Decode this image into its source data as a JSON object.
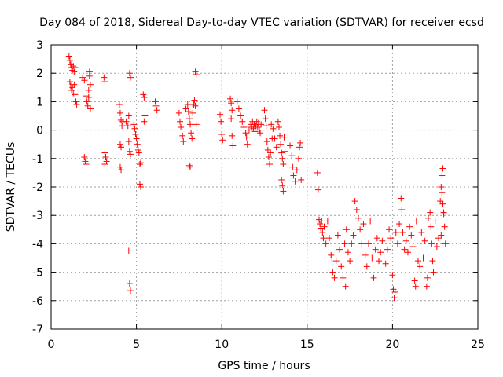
{
  "chart_data": {
    "type": "scatter",
    "title": "Day 084 of 2018, Sidereal Day-to-day VTEC variation (SDTVAR) for receiver ecsd",
    "xlabel": "GPS time / hours",
    "ylabel": "SDTVAR / TECUs",
    "xlim": [
      0,
      25
    ],
    "ylim": [
      -7,
      3
    ],
    "xticks": [
      "0",
      "5",
      "10",
      "15",
      "20",
      "25"
    ],
    "yticks": [
      "3",
      "2",
      "1",
      "0",
      "-1",
      "-2",
      "-3",
      "-4",
      "-5",
      "-6",
      "-7"
    ],
    "grid": true,
    "marker": "+",
    "series_color": "#ff0000",
    "series": [
      {
        "name": "SDTVAR",
        "points": [
          [
            1.05,
            2.6
          ],
          [
            1.1,
            2.45
          ],
          [
            1.15,
            2.3
          ],
          [
            1.2,
            2.2
          ],
          [
            1.25,
            2.1
          ],
          [
            1.3,
            2.25
          ],
          [
            1.35,
            2.05
          ],
          [
            1.4,
            2.2
          ],
          [
            1.1,
            1.7
          ],
          [
            1.15,
            1.55
          ],
          [
            1.2,
            1.4
          ],
          [
            1.25,
            1.5
          ],
          [
            1.3,
            1.3
          ],
          [
            1.35,
            1.6
          ],
          [
            1.4,
            1.25
          ],
          [
            1.45,
            1.0
          ],
          [
            1.5,
            0.9
          ],
          [
            1.85,
            1.85
          ],
          [
            1.95,
            1.75
          ],
          [
            2.05,
            1.2
          ],
          [
            2.1,
            1.0
          ],
          [
            2.15,
            0.85
          ],
          [
            2.2,
            1.4
          ],
          [
            2.25,
            1.9
          ],
          [
            2.3,
            1.6
          ],
          [
            2.25,
            2.05
          ],
          [
            2.2,
            1.15
          ],
          [
            2.3,
            0.75
          ],
          [
            1.95,
            -0.95
          ],
          [
            2.0,
            -1.1
          ],
          [
            2.05,
            -1.2
          ],
          [
            3.1,
            1.85
          ],
          [
            3.15,
            1.7
          ],
          [
            3.15,
            -0.8
          ],
          [
            3.2,
            -0.95
          ],
          [
            3.25,
            -1.1
          ],
          [
            3.15,
            -1.2
          ],
          [
            4.0,
            0.9
          ],
          [
            4.05,
            0.6
          ],
          [
            4.1,
            0.35
          ],
          [
            4.15,
            0.15
          ],
          [
            4.2,
            0.3
          ],
          [
            4.05,
            -0.5
          ],
          [
            4.1,
            -0.6
          ],
          [
            4.05,
            -1.3
          ],
          [
            4.1,
            -1.4
          ],
          [
            4.4,
            0.3
          ],
          [
            4.5,
            0.15
          ],
          [
            4.55,
            -0.4
          ],
          [
            4.6,
            -0.75
          ],
          [
            4.65,
            -0.85
          ],
          [
            4.55,
            0.5
          ],
          [
            4.6,
            2.0
          ],
          [
            4.65,
            1.85
          ],
          [
            4.85,
            0.2
          ],
          [
            4.9,
            0.05
          ],
          [
            4.95,
            -0.15
          ],
          [
            5.0,
            -0.3
          ],
          [
            5.05,
            -0.5
          ],
          [
            5.1,
            -0.7
          ],
          [
            5.15,
            -0.8
          ],
          [
            5.2,
            -1.2
          ],
          [
            5.25,
            -1.15
          ],
          [
            5.2,
            -1.9
          ],
          [
            5.25,
            -2.0
          ],
          [
            5.4,
            1.25
          ],
          [
            5.45,
            1.15
          ],
          [
            5.5,
            0.5
          ],
          [
            5.45,
            0.3
          ],
          [
            4.55,
            -4.25
          ],
          [
            4.6,
            -5.4
          ],
          [
            4.65,
            -5.65
          ],
          [
            6.1,
            1.0
          ],
          [
            6.15,
            0.85
          ],
          [
            6.2,
            0.7
          ],
          [
            7.5,
            0.6
          ],
          [
            7.55,
            0.3
          ],
          [
            7.6,
            0.1
          ],
          [
            7.7,
            -0.2
          ],
          [
            7.75,
            -0.4
          ],
          [
            7.9,
            0.75
          ],
          [
            8.0,
            0.9
          ],
          [
            8.05,
            0.65
          ],
          [
            8.1,
            0.4
          ],
          [
            8.15,
            0.2
          ],
          [
            8.2,
            -0.1
          ],
          [
            8.25,
            -0.3
          ],
          [
            8.3,
            0.6
          ],
          [
            8.35,
            0.9
          ],
          [
            8.4,
            1.05
          ],
          [
            8.45,
            0.85
          ],
          [
            8.5,
            0.2
          ],
          [
            8.1,
            -1.25
          ],
          [
            8.15,
            -1.3
          ],
          [
            8.45,
            2.05
          ],
          [
            8.5,
            1.95
          ],
          [
            9.9,
            0.55
          ],
          [
            9.95,
            0.3
          ],
          [
            10.0,
            -0.15
          ],
          [
            10.05,
            -0.35
          ],
          [
            10.5,
            1.1
          ],
          [
            10.55,
            0.95
          ],
          [
            10.6,
            0.7
          ],
          [
            10.55,
            0.4
          ],
          [
            10.6,
            -0.2
          ],
          [
            10.65,
            -0.55
          ],
          [
            10.9,
            1.0
          ],
          [
            11.0,
            0.75
          ],
          [
            11.1,
            0.5
          ],
          [
            11.2,
            0.3
          ],
          [
            11.3,
            0.1
          ],
          [
            11.4,
            -0.1
          ],
          [
            11.45,
            -0.25
          ],
          [
            11.5,
            -0.5
          ],
          [
            11.6,
            0.0
          ],
          [
            11.7,
            0.2
          ],
          [
            11.75,
            0.1
          ],
          [
            11.8,
            0.3
          ],
          [
            11.85,
            0.05
          ],
          [
            11.9,
            0.2
          ],
          [
            11.95,
            -0.05
          ],
          [
            12.0,
            0.15
          ],
          [
            12.05,
            0.3
          ],
          [
            12.1,
            0.1
          ],
          [
            12.15,
            0.25
          ],
          [
            12.2,
            0.0
          ],
          [
            12.25,
            -0.1
          ],
          [
            12.3,
            0.2
          ],
          [
            12.5,
            0.7
          ],
          [
            12.55,
            0.4
          ],
          [
            12.6,
            0.15
          ],
          [
            12.65,
            -0.4
          ],
          [
            12.7,
            -0.7
          ],
          [
            12.75,
            -0.95
          ],
          [
            12.8,
            -1.2
          ],
          [
            12.85,
            -0.8
          ],
          [
            12.9,
            0.2
          ],
          [
            12.95,
            -0.3
          ],
          [
            13.0,
            0.05
          ],
          [
            13.1,
            -0.3
          ],
          [
            13.2,
            -0.6
          ],
          [
            13.3,
            0.3
          ],
          [
            13.35,
            0.1
          ],
          [
            13.4,
            -0.2
          ],
          [
            13.45,
            -0.5
          ],
          [
            13.5,
            -0.8
          ],
          [
            13.55,
            -1.0
          ],
          [
            13.6,
            -1.2
          ],
          [
            13.5,
            -1.75
          ],
          [
            13.55,
            -1.95
          ],
          [
            13.6,
            -2.15
          ],
          [
            13.65,
            -0.25
          ],
          [
            13.7,
            -0.75
          ],
          [
            14.0,
            -0.55
          ],
          [
            14.1,
            -0.9
          ],
          [
            14.15,
            -1.3
          ],
          [
            14.2,
            -1.6
          ],
          [
            14.3,
            -1.8
          ],
          [
            14.4,
            -1.4
          ],
          [
            14.5,
            -1.0
          ],
          [
            14.55,
            -0.6
          ],
          [
            14.6,
            -0.45
          ],
          [
            14.65,
            -1.75
          ],
          [
            15.6,
            -1.5
          ],
          [
            15.65,
            -2.1
          ],
          [
            15.7,
            -3.15
          ],
          [
            15.75,
            -3.3
          ],
          [
            15.8,
            -3.45
          ],
          [
            15.85,
            -3.2
          ],
          [
            15.9,
            -3.6
          ],
          [
            15.95,
            -3.8
          ],
          [
            16.0,
            -3.4
          ],
          [
            16.1,
            -4.0
          ],
          [
            16.2,
            -3.2
          ],
          [
            16.3,
            -3.8
          ],
          [
            16.4,
            -4.4
          ],
          [
            16.5,
            -5.0
          ],
          [
            16.6,
            -5.2
          ],
          [
            16.7,
            -4.6
          ],
          [
            16.8,
            -3.7
          ],
          [
            16.9,
            -4.2
          ],
          [
            17.0,
            -4.8
          ],
          [
            17.1,
            -5.2
          ],
          [
            17.2,
            -4.0
          ],
          [
            17.3,
            -3.5
          ],
          [
            17.4,
            -4.3
          ],
          [
            17.5,
            -4.6
          ],
          [
            17.6,
            -4.0
          ],
          [
            17.7,
            -3.7
          ],
          [
            17.8,
            -2.5
          ],
          [
            17.9,
            -2.8
          ],
          [
            18.0,
            -3.1
          ],
          [
            18.1,
            -3.5
          ],
          [
            18.2,
            -4.0
          ],
          [
            18.3,
            -3.3
          ],
          [
            18.4,
            -4.4
          ],
          [
            18.5,
            -4.8
          ],
          [
            18.6,
            -4.0
          ],
          [
            18.7,
            -3.2
          ],
          [
            18.8,
            -4.5
          ],
          [
            18.9,
            -5.2
          ],
          [
            19.0,
            -4.2
          ],
          [
            19.1,
            -3.8
          ],
          [
            19.2,
            -4.6
          ],
          [
            19.3,
            -4.3
          ],
          [
            19.4,
            -3.9
          ],
          [
            19.5,
            -4.5
          ],
          [
            19.6,
            -4.7
          ],
          [
            19.7,
            -4.2
          ],
          [
            19.8,
            -3.5
          ],
          [
            19.9,
            -3.8
          ],
          [
            20.0,
            -5.1
          ],
          [
            20.05,
            -5.6
          ],
          [
            20.1,
            -5.9
          ],
          [
            20.15,
            -5.7
          ],
          [
            20.2,
            -3.6
          ],
          [
            20.3,
            -4.0
          ],
          [
            20.4,
            -3.3
          ],
          [
            20.5,
            -2.4
          ],
          [
            20.55,
            -2.8
          ],
          [
            20.6,
            -3.6
          ],
          [
            20.7,
            -4.2
          ],
          [
            20.8,
            -3.9
          ],
          [
            20.9,
            -4.3
          ],
          [
            21.0,
            -3.4
          ],
          [
            21.1,
            -3.7
          ],
          [
            21.2,
            -4.1
          ],
          [
            21.3,
            -5.3
          ],
          [
            21.35,
            -5.5
          ],
          [
            21.4,
            -3.2
          ],
          [
            21.5,
            -4.6
          ],
          [
            21.6,
            -4.8
          ],
          [
            21.7,
            -3.6
          ],
          [
            21.8,
            -4.5
          ],
          [
            21.9,
            -3.9
          ],
          [
            22.0,
            -5.5
          ],
          [
            22.05,
            -5.2
          ],
          [
            22.1,
            -3.1
          ],
          [
            22.2,
            -2.9
          ],
          [
            22.25,
            -3.4
          ],
          [
            22.3,
            -4.0
          ],
          [
            22.35,
            -4.6
          ],
          [
            22.4,
            -5.0
          ],
          [
            22.5,
            -3.2
          ],
          [
            22.6,
            -4.1
          ],
          [
            22.7,
            -3.8
          ],
          [
            22.8,
            -2.5
          ],
          [
            22.85,
            -2.0
          ],
          [
            22.9,
            -1.6
          ],
          [
            22.95,
            -1.35
          ],
          [
            23.0,
            -2.9
          ],
          [
            23.05,
            -3.4
          ],
          [
            23.1,
            -4.0
          ],
          [
            22.9,
            -2.2
          ],
          [
            22.95,
            -2.6
          ],
          [
            23.0,
            -2.95
          ],
          [
            22.85,
            -3.7
          ],
          [
            16.45,
            -4.5
          ],
          [
            17.25,
            -5.5
          ]
        ]
      }
    ]
  }
}
